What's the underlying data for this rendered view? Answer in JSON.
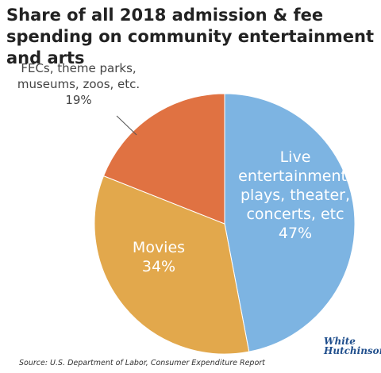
{
  "chart_data": {
    "type": "pie",
    "title": "Share of all 2018 admission & fee spending on community entertainment and arts",
    "categories": [
      "Live entertainment-plays, theater, concerts, etc",
      "Movies",
      "FECs, theme parks, museums, zoos, etc."
    ],
    "values": [
      47,
      34,
      19
    ],
    "value_labels": [
      "47%",
      "34%",
      "19%"
    ],
    "colors": [
      "#7db4e2",
      "#e2a84c",
      "#e07242"
    ],
    "source": "Source: U.S. Department of Labor, Consumer Expenditure Report",
    "logo": {
      "line1": "White",
      "line2": "Hutchinson"
    }
  }
}
